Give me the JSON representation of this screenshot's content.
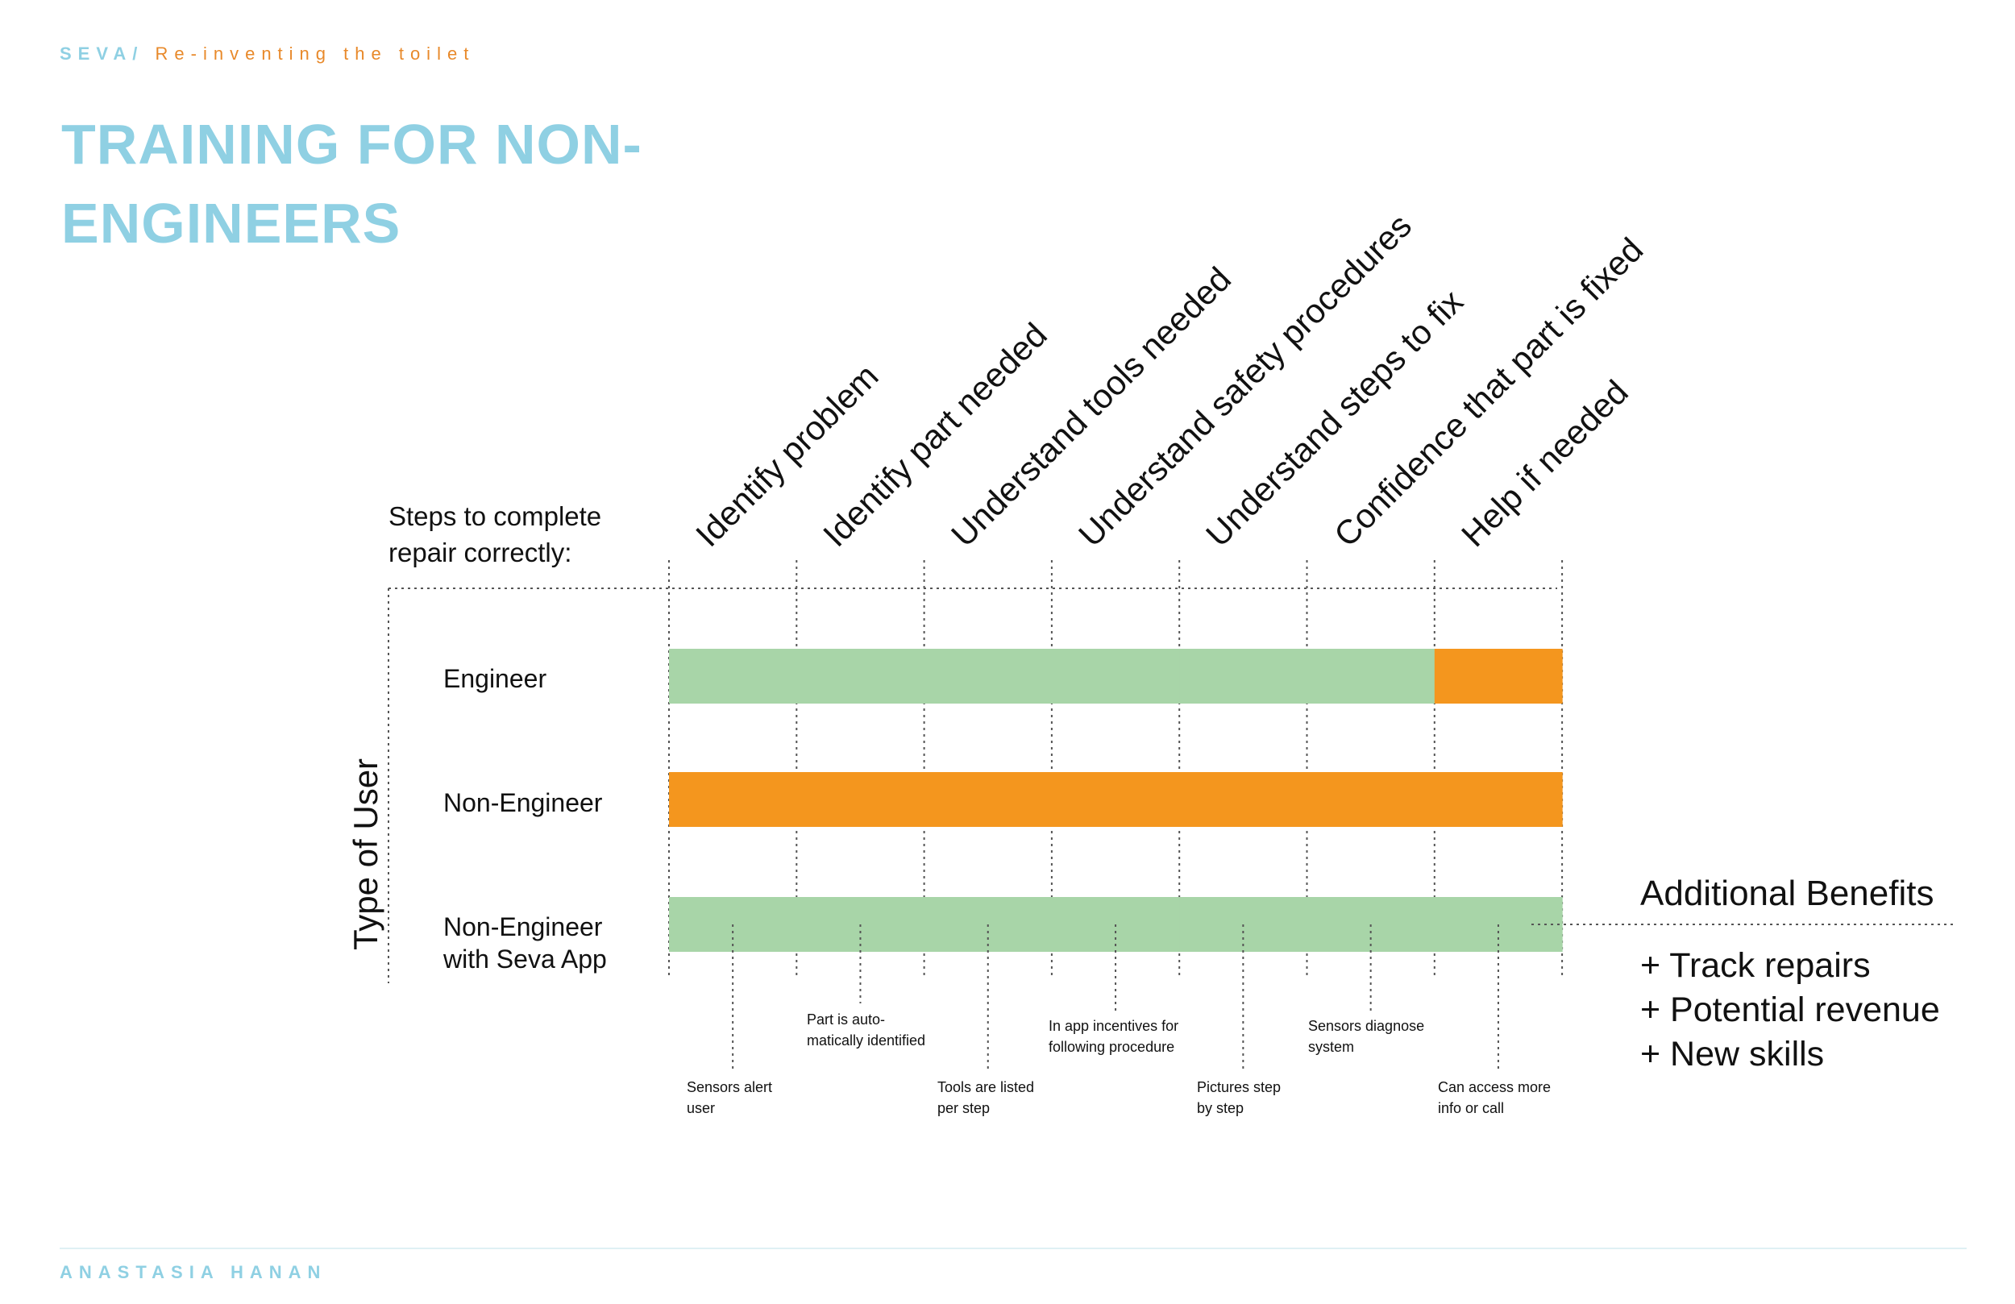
{
  "header": {
    "brand": "SEVA/",
    "subtitle": "Re-inventing the toilet"
  },
  "title": "TRAINING FOR NON-ENGINEERS",
  "footer": {
    "author": "ANASTASIA HANAN"
  },
  "steps_label": [
    "Steps to complete",
    "repair correctly:"
  ],
  "axis_title": "Type of User",
  "steps": [
    "Identify problem",
    "Identify part needed",
    "Understand tools needed",
    "Understand safety procedures",
    "Understand steps to fix",
    "Confidence that part is fixed",
    "Help if needed"
  ],
  "rows": [
    {
      "label": [
        "Engineer"
      ],
      "cells": [
        "green",
        "green",
        "green",
        "green",
        "green",
        "green",
        "orange"
      ]
    },
    {
      "label": [
        "Non-Engineer"
      ],
      "cells": [
        "orange",
        "orange",
        "orange",
        "orange",
        "orange",
        "orange",
        "orange"
      ]
    },
    {
      "label": [
        "Non-Engineer",
        "with Seva App"
      ],
      "cells": [
        "green",
        "green",
        "green",
        "green",
        "green",
        "green",
        "green"
      ]
    }
  ],
  "annotations": [
    [
      "Sensors alert",
      "user"
    ],
    [
      "Part is auto-",
      "matically identified"
    ],
    [
      "Tools are listed",
      "per step"
    ],
    [
      "In app incentives for",
      "following procedure"
    ],
    [
      "Pictures step",
      "by step"
    ],
    [
      "Sensors diagnose",
      "system"
    ],
    [
      "Can access more",
      "info or call"
    ]
  ],
  "benefits": {
    "heading": "Additional Benefits",
    "items": [
      "+ Track repairs",
      "+ Potential revenue",
      "+ New skills"
    ]
  },
  "colors": {
    "green": "#a8d5a8",
    "orange": "#f4961e",
    "accent_blue": "#8fd0e3",
    "accent_orange": "#e8892a"
  }
}
